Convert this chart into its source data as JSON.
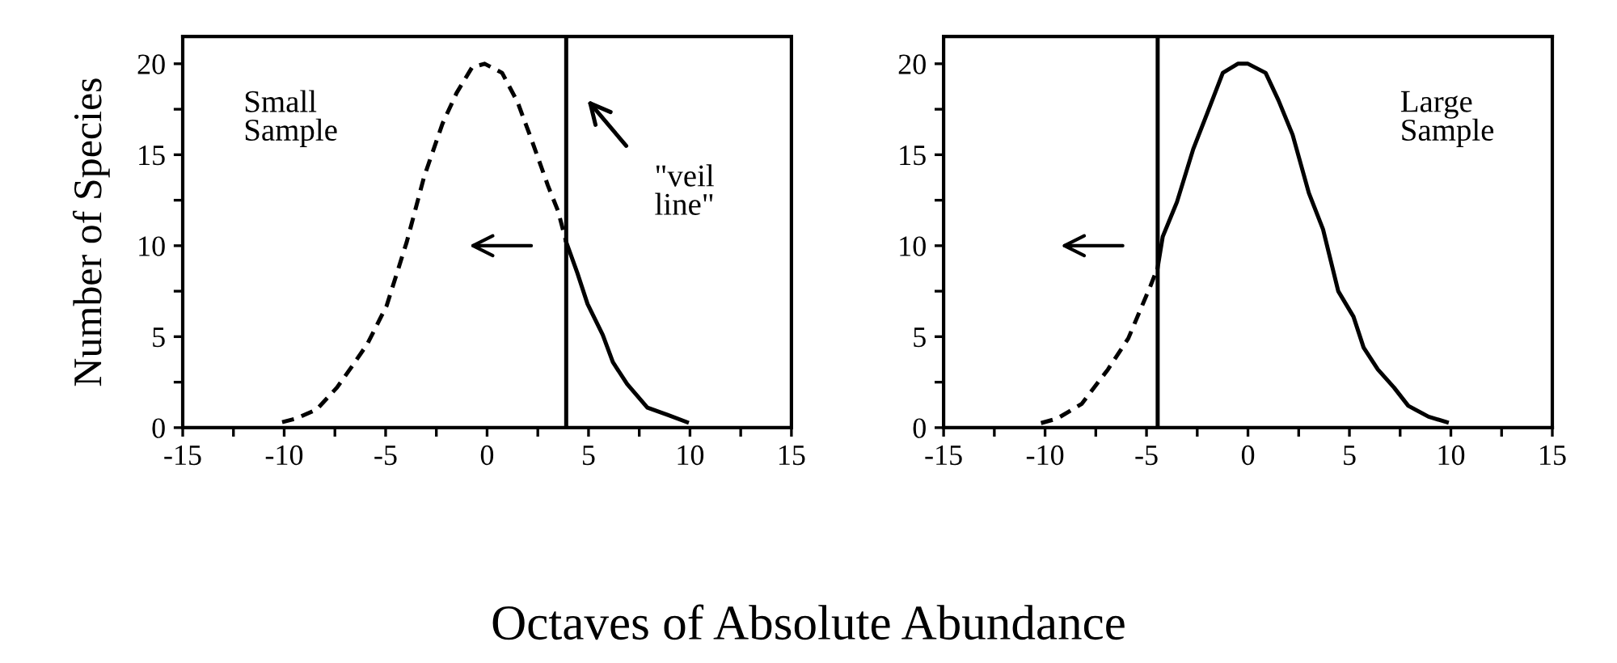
{
  "chart_data": [
    {
      "type": "line",
      "ylabel": "Number of Species",
      "xlabel": "Octaves of Absolute Abundance",
      "annotations": [
        "Small\nSample",
        "\"veil\nline\""
      ],
      "series": [
        {
          "color": "#000000",
          "line_style": "dashed",
          "x": [
            -10.1,
            -9.4,
            -8.4,
            -7.4,
            -6.7,
            -5.9,
            -4.95,
            -3.96,
            -3.1,
            -2.2,
            -1.5,
            -0.74,
            -0.12,
            0.74,
            1.5,
            2.2,
            3.0,
            3.5,
            3.9
          ],
          "values": [
            0.3,
            0.5,
            1.0,
            2.2,
            3.3,
            4.6,
            6.7,
            10.2,
            13.8,
            16.7,
            18.4,
            19.8,
            20,
            19.5,
            17.9,
            15.8,
            13.3,
            11.9,
            10.2
          ]
        },
        {
          "color": "#000000",
          "line_style": "solid",
          "x": [
            3.9,
            4.45,
            4.95,
            5.7,
            6.2,
            6.9,
            7.9,
            8.9,
            9.85
          ],
          "values": [
            10.2,
            8.5,
            6.8,
            5.1,
            3.6,
            2.4,
            1.1,
            0.7,
            0.3
          ]
        }
      ],
      "ref_lines": [
        {
          "axis": "x",
          "value": 3.9,
          "color": "#000000"
        }
      ],
      "xlim": [
        -15,
        15
      ],
      "ylim": [
        0,
        21.5
      ],
      "xticks": [
        -15,
        {
          "value": -12.5,
          "label": null
        },
        -10,
        {
          "value": -7.5,
          "label": null
        },
        -5,
        {
          "value": -2.5,
          "label": null
        },
        0,
        {
          "value": 2.5,
          "label": null
        },
        5,
        {
          "value": 7.5,
          "label": null
        },
        10,
        {
          "value": 12.5,
          "label": null
        },
        15
      ],
      "yticks": [
        0,
        {
          "value": 2.5,
          "label": null
        },
        5,
        {
          "value": 7.5,
          "label": null
        },
        10,
        {
          "value": 12.5,
          "label": null
        },
        15,
        {
          "value": 17.5,
          "label": null
        },
        20
      ],
      "grid": false
    },
    {
      "type": "line",
      "annotations": [
        "Large\nSample"
      ],
      "series": [
        {
          "color": "#000000",
          "line_style": "dashed",
          "x": [
            -10.2,
            -9.4,
            -8.2,
            -6.9,
            -5.9,
            -4.8,
            -4.45
          ],
          "values": [
            0.25,
            0.5,
            1.3,
            3.2,
            4.9,
            7.8,
            8.8
          ]
        },
        {
          "color": "#000000",
          "line_style": "solid",
          "x": [
            -4.45,
            -4.2,
            -3.5,
            -2.7,
            -2.0,
            -1.24,
            -0.5,
            0,
            0.87,
            1.5,
            2.2,
            3.0,
            3.7,
            4.45,
            5.2,
            5.7,
            6.4,
            7.2,
            7.9,
            8.9,
            9.8
          ],
          "values": [
            8.8,
            10.5,
            12.4,
            15.3,
            17.3,
            19.5,
            20,
            20,
            19.5,
            18,
            16.1,
            12.9,
            10.9,
            7.5,
            6.1,
            4.4,
            3.2,
            2.2,
            1.2,
            0.6,
            0.3
          ]
        }
      ],
      "ref_lines": [
        {
          "axis": "x",
          "value": -4.45,
          "color": "#000000"
        }
      ],
      "xlim": [
        -15,
        15
      ],
      "ylim": [
        0,
        21.5
      ],
      "xticks": [
        -15,
        {
          "value": -12.5,
          "label": null
        },
        -10,
        {
          "value": -7.5,
          "label": null
        },
        -5,
        {
          "value": -2.5,
          "label": null
        },
        0,
        {
          "value": 2.5,
          "label": null
        },
        5,
        {
          "value": 7.5,
          "label": null
        },
        10,
        {
          "value": 12.5,
          "label": null
        },
        15
      ],
      "yticks": [
        0,
        {
          "value": 2.5,
          "label": null
        },
        5,
        {
          "value": 7.5,
          "label": null
        },
        10,
        {
          "value": 12.5,
          "label": null
        },
        15,
        {
          "value": 17.5,
          "label": null
        },
        20
      ],
      "grid": false
    }
  ]
}
